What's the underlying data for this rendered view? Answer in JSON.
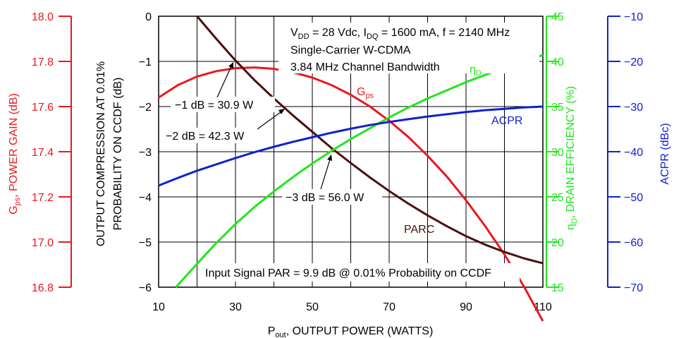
{
  "colors": {
    "gain": "#e8191f",
    "parc": "#4a0f0f",
    "eff": "#22e61e",
    "acpr": "#1020d0"
  },
  "chart_data": {
    "type": "line",
    "x_label": "P",
    "x_label_sub": "out",
    "x_label_rest": ", OUTPUT POWER (WATTS)",
    "x_ticks": [
      "10",
      "30",
      "50",
      "70",
      "90",
      "110"
    ],
    "xlim": [
      10,
      110
    ],
    "axes": {
      "gain": {
        "label_main": "G",
        "label_sub": "ps",
        "label_rest": ", POWER GAIN (dB)",
        "ticks": [
          "18.0",
          "17.8",
          "17.6",
          "17.4",
          "17.2",
          "17.0",
          "16.8"
        ],
        "ylim": [
          16.8,
          18.0
        ]
      },
      "parc": {
        "label_line1": "OUTPUT COMPRESSION AT 0.01%",
        "label_line2": "PROBABILITY ON CCDF (dB)",
        "ticks": [
          "0",
          "−1",
          "−2",
          "−3",
          "−4",
          "−5",
          "−6"
        ],
        "ylim": [
          -6,
          0
        ]
      },
      "eff": {
        "label_main": "η",
        "label_sub": "D",
        "label_rest": ", DRAIN EFFICIENCY (%)",
        "ticks": [
          "45",
          "40",
          "35",
          "30",
          "25",
          "20",
          "15"
        ],
        "ylim": [
          15,
          45
        ]
      },
      "acpr": {
        "label": "ACPR (dBc)",
        "ticks": [
          "−10",
          "−20",
          "−30",
          "−40",
          "−50",
          "−60",
          "−70"
        ],
        "ylim": [
          -70,
          -10
        ]
      }
    },
    "series": [
      {
        "name": "G",
        "name_sub": "ps",
        "axis": "gain",
        "x": [
          10,
          15,
          20,
          25,
          30,
          35,
          40,
          45,
          50,
          55,
          60,
          65,
          70,
          75,
          80,
          85,
          90,
          95,
          100,
          105,
          110
        ],
        "y": [
          17.64,
          17.695,
          17.733,
          17.757,
          17.77,
          17.773,
          17.767,
          17.752,
          17.728,
          17.695,
          17.652,
          17.6,
          17.537,
          17.465,
          17.382,
          17.29,
          17.185,
          17.07,
          16.945,
          16.805,
          16.65
        ]
      },
      {
        "name": "PARC",
        "axis": "parc",
        "x": [
          20,
          25,
          30,
          35,
          40,
          45,
          50,
          55,
          60,
          65,
          70,
          75,
          80,
          85,
          90,
          95,
          100,
          105,
          110
        ],
        "y": [
          0.0,
          -0.5,
          -0.98,
          -1.42,
          -1.82,
          -2.2,
          -2.56,
          -2.92,
          -3.25,
          -3.57,
          -3.87,
          -4.15,
          -4.41,
          -4.65,
          -4.87,
          -5.06,
          -5.22,
          -5.36,
          -5.47
        ]
      },
      {
        "name": "η",
        "name_sub": "D",
        "axis": "eff",
        "x": [
          14.5,
          20,
          25,
          30,
          35,
          40,
          45,
          50,
          55,
          60,
          65,
          70,
          75,
          80,
          85,
          90,
          95,
          100,
          105,
          110
        ],
        "y": [
          15.0,
          17.6,
          19.9,
          22.0,
          23.9,
          25.6,
          27.2,
          28.7,
          30.1,
          31.4,
          32.6,
          33.8,
          34.9,
          35.9,
          36.8,
          37.7,
          38.5,
          39.3,
          40.0,
          40.7
        ]
      },
      {
        "name": "ACPR",
        "axis": "acpr",
        "x": [
          10,
          15,
          20,
          25,
          30,
          35,
          40,
          45,
          50,
          55,
          60,
          65,
          70,
          75,
          80,
          85,
          90,
          95,
          100,
          105,
          110
        ],
        "y": [
          -47.5,
          -45.8,
          -44.2,
          -42.8,
          -41.4,
          -40.1,
          -38.9,
          -37.8,
          -36.8,
          -35.8,
          -34.9,
          -34.1,
          -33.4,
          -32.8,
          -32.2,
          -31.7,
          -31.2,
          -30.8,
          -30.5,
          -30.2,
          -30.0
        ]
      }
    ],
    "annotations": {
      "cond_line1_a": "V",
      "cond_line1_a_sub": "DD",
      "cond_line1_b": " = 28 Vdc, I",
      "cond_line1_b_sub": "DQ",
      "cond_line1_c": " = 1600 mA, f = 2140 MHz",
      "cond_line2": "Single-Carrier W-CDMA",
      "cond_line3": "3.84 MHz Channel Bandwidth",
      "input_par": "Input Signal PAR = 9.9 dB @ 0.01% Probability on CCDF",
      "callout_1db": "−1 dB = 30.9 W",
      "callout_2db": "−2 dB = 42.3 W",
      "callout_3db": "−3 dB = 56.0 W"
    }
  }
}
